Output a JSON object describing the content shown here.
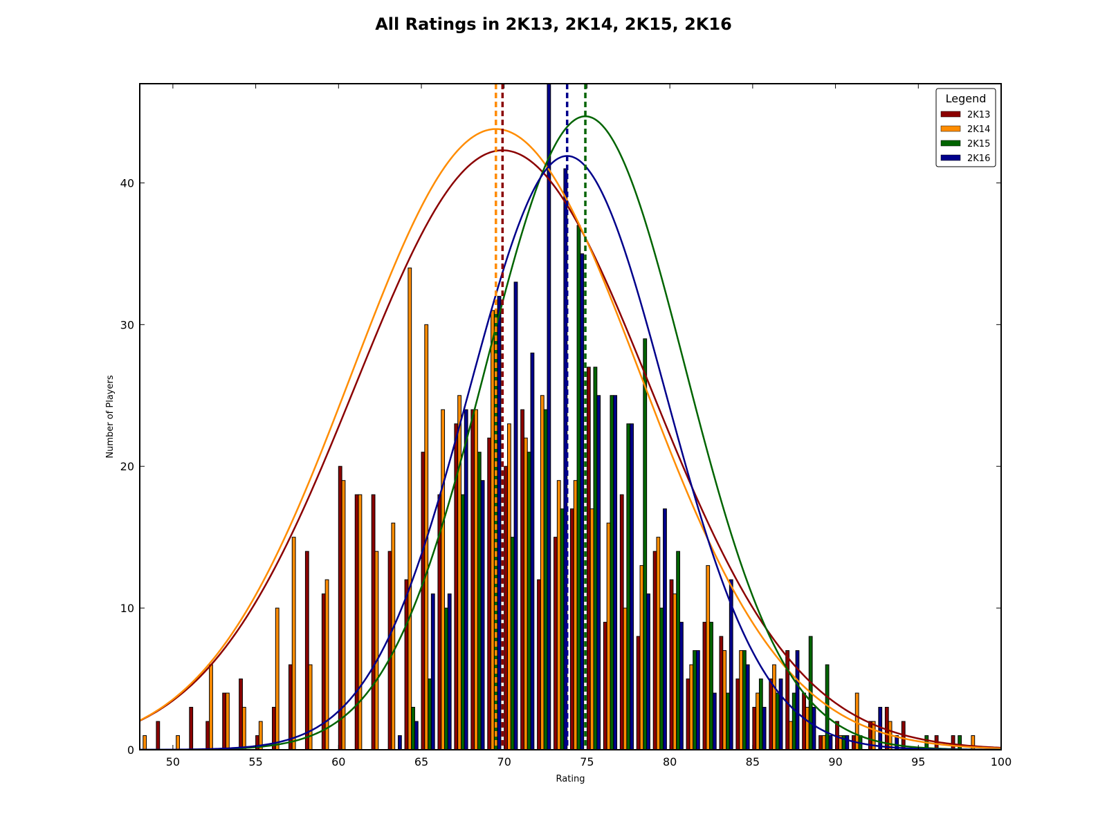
{
  "chart_data": {
    "type": "bar",
    "title": "All Ratings in 2K13, 2K14, 2K15, 2K16",
    "xlabel": "Rating",
    "ylabel": "Number of Players",
    "xlim": [
      48,
      100
    ],
    "ylim": [
      0,
      47
    ],
    "xticks": [
      50,
      55,
      60,
      65,
      70,
      75,
      80,
      85,
      90,
      95,
      100
    ],
    "yticks": [
      0,
      10,
      20,
      30,
      40
    ],
    "grid": false,
    "legend": {
      "title": "Legend",
      "placement": "top-right"
    },
    "series": [
      {
        "name": "2K13",
        "color": "#8b0000",
        "mean": 69.9,
        "curve_peak": 42.3,
        "curve_sd": 8.9,
        "values": [
          [
            49,
            2
          ],
          [
            51,
            3
          ],
          [
            52,
            2
          ],
          [
            53,
            4
          ],
          [
            54,
            5
          ],
          [
            55,
            1
          ],
          [
            56,
            3
          ],
          [
            57,
            6
          ],
          [
            58,
            14
          ],
          [
            59,
            11
          ],
          [
            60,
            20
          ],
          [
            61,
            18
          ],
          [
            62,
            18
          ],
          [
            63,
            14
          ],
          [
            64,
            12
          ],
          [
            65,
            21
          ],
          [
            66,
            18
          ],
          [
            67,
            23
          ],
          [
            68,
            24
          ],
          [
            69,
            22
          ],
          [
            70,
            20
          ],
          [
            71,
            24
          ],
          [
            72,
            12
          ],
          [
            73,
            15
          ],
          [
            74,
            17
          ],
          [
            75,
            27
          ],
          [
            76,
            9
          ],
          [
            77,
            18
          ],
          [
            78,
            8
          ],
          [
            79,
            14
          ],
          [
            80,
            12
          ],
          [
            81,
            5
          ],
          [
            82,
            9
          ],
          [
            83,
            8
          ],
          [
            84,
            5
          ],
          [
            85,
            3
          ],
          [
            86,
            5
          ],
          [
            87,
            7
          ],
          [
            88,
            4
          ],
          [
            89,
            1
          ],
          [
            90,
            2
          ],
          [
            91,
            1
          ],
          [
            92,
            2
          ],
          [
            93,
            3
          ],
          [
            94,
            2
          ],
          [
            96,
            1
          ],
          [
            97,
            1
          ]
        ]
      },
      {
        "name": "2K14",
        "color": "#ff8c00",
        "mean": 69.5,
        "curve_peak": 43.8,
        "curve_sd": 8.7,
        "values": [
          [
            48,
            1
          ],
          [
            50,
            1
          ],
          [
            52,
            6
          ],
          [
            53,
            4
          ],
          [
            54,
            3
          ],
          [
            55,
            2
          ],
          [
            56,
            10
          ],
          [
            57,
            15
          ],
          [
            58,
            6
          ],
          [
            59,
            12
          ],
          [
            60,
            19
          ],
          [
            61,
            18
          ],
          [
            62,
            14
          ],
          [
            63,
            16
          ],
          [
            64,
            34
          ],
          [
            65,
            30
          ],
          [
            66,
            24
          ],
          [
            67,
            25
          ],
          [
            68,
            24
          ],
          [
            69,
            31
          ],
          [
            70,
            23
          ],
          [
            71,
            22
          ],
          [
            72,
            25
          ],
          [
            73,
            19
          ],
          [
            74,
            19
          ],
          [
            75,
            17
          ],
          [
            76,
            16
          ],
          [
            77,
            10
          ],
          [
            78,
            13
          ],
          [
            79,
            15
          ],
          [
            80,
            11
          ],
          [
            81,
            6
          ],
          [
            82,
            13
          ],
          [
            83,
            7
          ],
          [
            84,
            7
          ],
          [
            85,
            4
          ],
          [
            86,
            6
          ],
          [
            87,
            2
          ],
          [
            88,
            3
          ],
          [
            89,
            1
          ],
          [
            90,
            1
          ],
          [
            91,
            4
          ],
          [
            92,
            2
          ],
          [
            93,
            2
          ],
          [
            98,
            1
          ]
        ]
      },
      {
        "name": "2K15",
        "color": "#006400",
        "mean": 74.9,
        "curve_peak": 44.7,
        "curve_sd": 6.0,
        "values": [
          [
            64,
            3
          ],
          [
            65,
            5
          ],
          [
            66,
            10
          ],
          [
            67,
            18
          ],
          [
            68,
            21
          ],
          [
            69,
            31
          ],
          [
            70,
            15
          ],
          [
            71,
            21
          ],
          [
            72,
            24
          ],
          [
            73,
            17
          ],
          [
            74,
            37
          ],
          [
            75,
            27
          ],
          [
            76,
            25
          ],
          [
            77,
            23
          ],
          [
            78,
            29
          ],
          [
            79,
            10
          ],
          [
            80,
            14
          ],
          [
            81,
            7
          ],
          [
            82,
            9
          ],
          [
            83,
            4
          ],
          [
            84,
            7
          ],
          [
            85,
            5
          ],
          [
            86,
            4
          ],
          [
            87,
            4
          ],
          [
            88,
            8
          ],
          [
            89,
            6
          ],
          [
            90,
            1
          ],
          [
            91,
            1
          ],
          [
            95,
            1
          ],
          [
            97,
            1
          ]
        ]
      },
      {
        "name": "2K16",
        "color": "#00008b",
        "mean": 73.8,
        "curve_peak": 41.9,
        "curve_sd": 5.9,
        "values": [
          [
            63,
            1
          ],
          [
            64,
            2
          ],
          [
            65,
            11
          ],
          [
            66,
            11
          ],
          [
            67,
            24
          ],
          [
            68,
            19
          ],
          [
            69,
            32
          ],
          [
            70,
            33
          ],
          [
            71,
            28
          ],
          [
            72,
            47
          ],
          [
            73,
            41
          ],
          [
            74,
            35
          ],
          [
            75,
            25
          ],
          [
            76,
            25
          ],
          [
            77,
            23
          ],
          [
            78,
            11
          ],
          [
            79,
            17
          ],
          [
            80,
            9
          ],
          [
            81,
            7
          ],
          [
            82,
            4
          ],
          [
            83,
            12
          ],
          [
            84,
            6
          ],
          [
            85,
            3
          ],
          [
            86,
            5
          ],
          [
            87,
            7
          ],
          [
            88,
            3
          ],
          [
            89,
            1
          ],
          [
            90,
            1
          ],
          [
            92,
            3
          ],
          [
            93,
            1
          ]
        ]
      }
    ]
  }
}
